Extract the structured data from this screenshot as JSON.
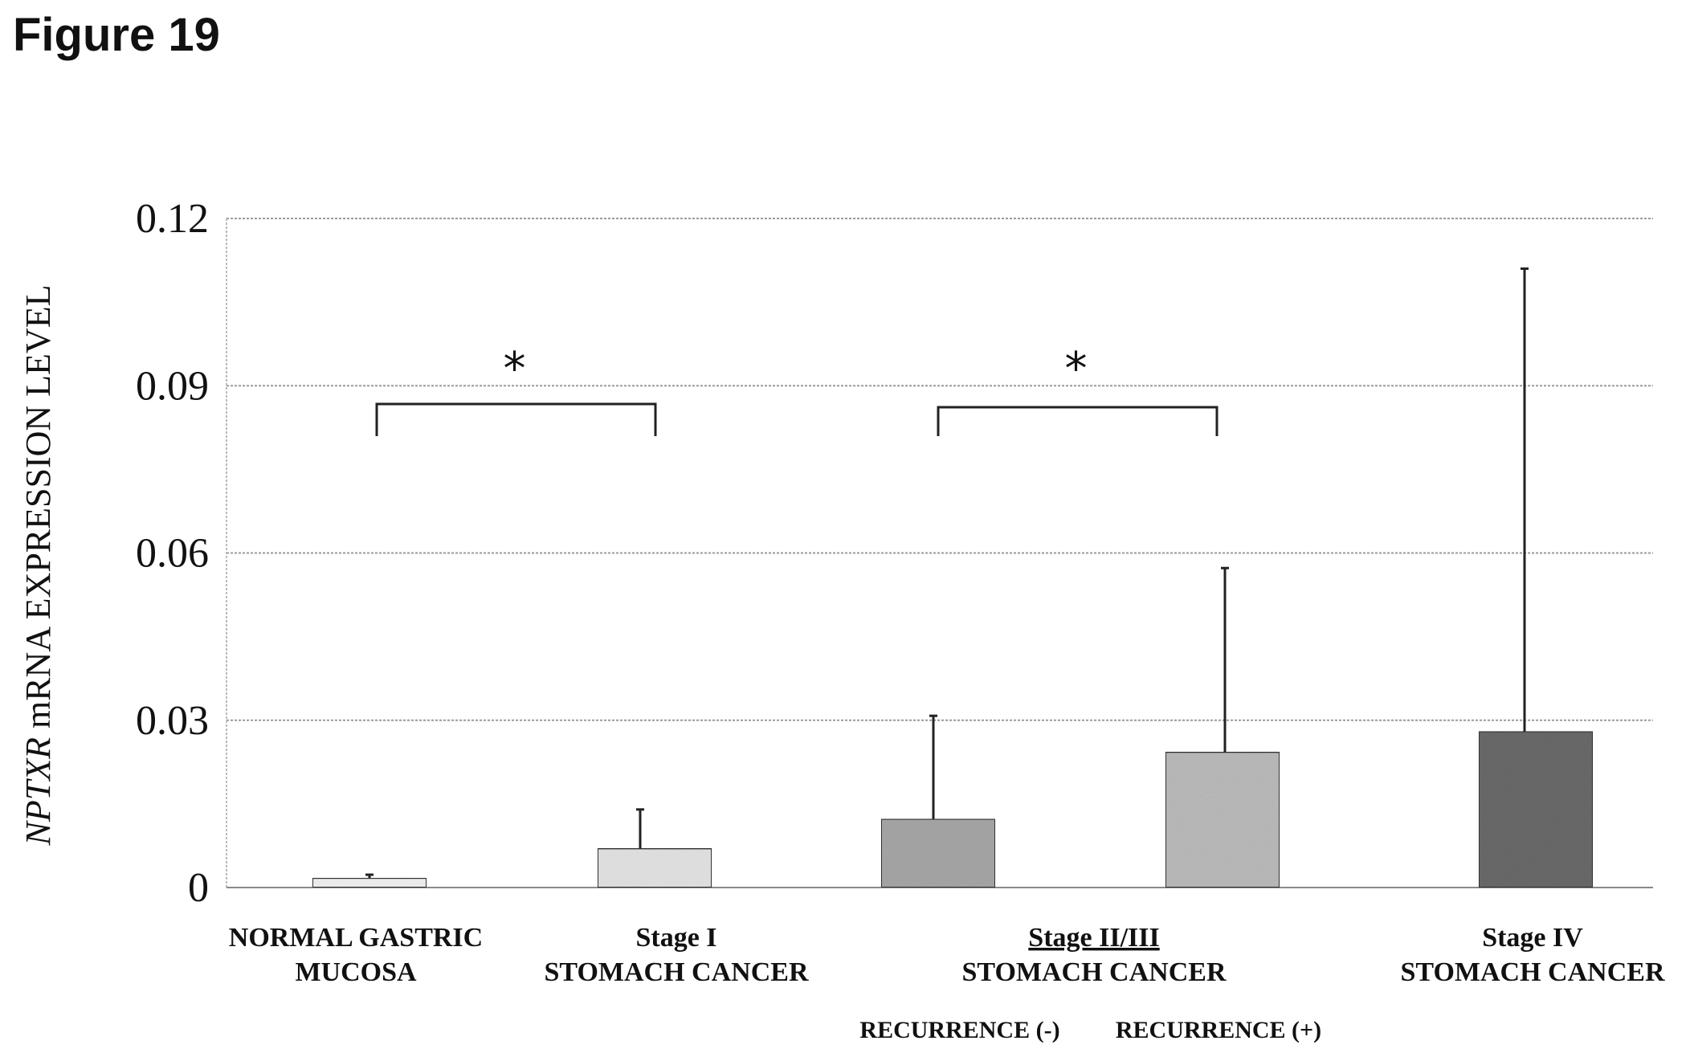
{
  "figure_label": "Figure 19",
  "chart_data": {
    "type": "bar",
    "ylabel_italic": "NPTXR",
    "ylabel_rest": " mRNA EXPRESSION LEVEL",
    "ylim": [
      0,
      0.12
    ],
    "yticks": [
      "0",
      "0.03",
      "0.06",
      "0.09",
      "0.12"
    ],
    "ytick_values": [
      0,
      0.03,
      0.06,
      0.09,
      0.12
    ],
    "grid": true,
    "categories": [
      {
        "line1": "NORMAL GASTRIC",
        "line2": "MUCOSA",
        "line1_underline": false
      },
      {
        "line1": "Stage I",
        "line2": "STOMACH CANCER",
        "line1_underline": false
      },
      {
        "line1": "Stage II/III",
        "line2": "STOMACH CANCER",
        "line1_underline": true
      },
      {
        "line1": "Stage IV",
        "line2": "STOMACH CANCER",
        "line1_underline": false
      }
    ],
    "bars": [
      {
        "label": "NORMAL GASTRIC MUCOSA",
        "value": 0.0017,
        "error": 0.0006,
        "color": "#f4f4f4"
      },
      {
        "label": "Stage I STOMACH CANCER",
        "value": 0.007,
        "error": 0.007,
        "color": "#e6e6e6"
      },
      {
        "label": "Stage II/III RECURRENCE (-)",
        "value": 0.0123,
        "error": 0.0185,
        "color": "#a9a9a9"
      },
      {
        "label": "Stage II/III RECURRENCE (+)",
        "value": 0.0243,
        "error": 0.033,
        "color": "#bdbdbd"
      },
      {
        "label": "Stage IV STOMACH CANCER",
        "value": 0.028,
        "error": 0.083,
        "color": "#6b6b6b"
      }
    ],
    "sublabels": [
      "RECURRENCE (-)",
      "RECURRENCE (+)"
    ],
    "significance": [
      {
        "from_bar": 0,
        "to_bar": 1,
        "mark": "*"
      },
      {
        "from_bar": 2,
        "to_bar": 3,
        "mark": "*"
      }
    ]
  }
}
